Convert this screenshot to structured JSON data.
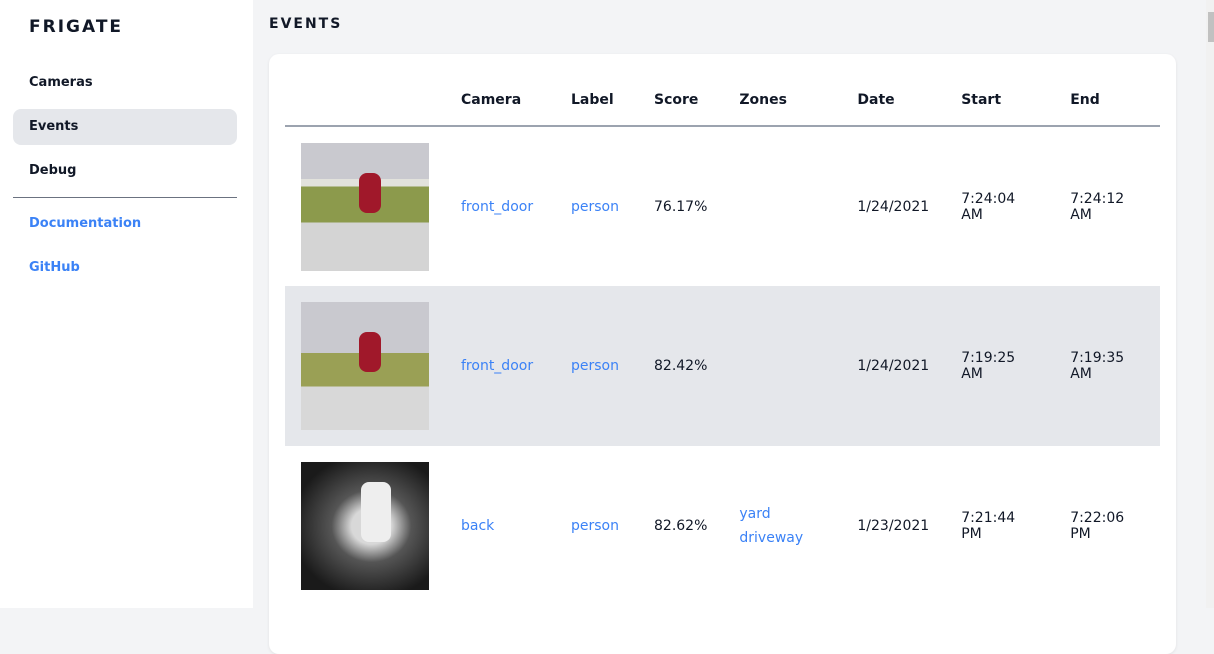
{
  "sidebar": {
    "brand": "FRIGATE",
    "items": [
      {
        "label": "Cameras"
      },
      {
        "label": "Events",
        "active": true
      },
      {
        "label": "Debug"
      }
    ],
    "links": [
      {
        "label": "Documentation"
      },
      {
        "label": "GitHub"
      }
    ]
  },
  "main": {
    "title": "EVENTS",
    "columns": [
      "",
      "Camera",
      "Label",
      "Score",
      "Zones",
      "Date",
      "Start",
      "End"
    ],
    "rows": [
      {
        "camera": "front_door",
        "label": "person",
        "score": "76.17%",
        "zones": [
          "",
          ""
        ],
        "date": "1/24/2021",
        "start": "7:24:04 AM",
        "end": "7:24:12 AM"
      },
      {
        "camera": "front_door",
        "label": "person",
        "score": "82.42%",
        "zones": [
          "",
          ""
        ],
        "date": "1/24/2021",
        "start": "7:19:25 AM",
        "end": "7:19:35 AM"
      },
      {
        "camera": "back",
        "label": "person",
        "score": "82.62%",
        "zones": [
          "yard",
          "driveway"
        ],
        "date": "1/23/2021",
        "start": "7:21:44 PM",
        "end": "7:22:06 PM"
      }
    ]
  },
  "colors": {
    "accent": "#3b82f6",
    "active_bg": "#e5e7eb"
  }
}
